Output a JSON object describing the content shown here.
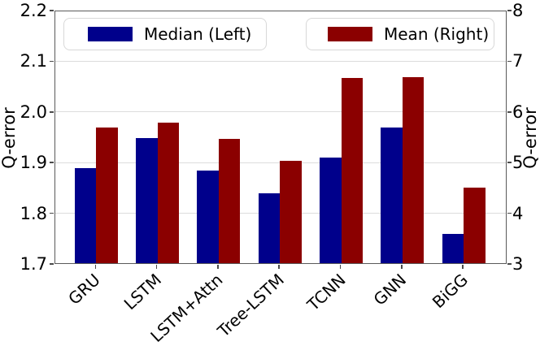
{
  "chart_data": {
    "type": "bar",
    "title": "",
    "categories": [
      "GRU",
      "LSTM",
      "LSTM+Attn",
      "Tree-LSTM",
      "TCNN",
      "GNN",
      "BiGG"
    ],
    "series": [
      {
        "name": "Median (Left)",
        "key": "median",
        "axis": "left",
        "color": "#00008B",
        "values": [
          1.89,
          1.95,
          1.885,
          1.84,
          1.91,
          1.97,
          1.76
        ]
      },
      {
        "name": "Mean (Right)",
        "key": "mean",
        "axis": "right",
        "color": "#8B0000",
        "values": [
          5.7,
          5.8,
          5.47,
          5.05,
          6.68,
          6.7,
          4.52
        ]
      }
    ],
    "left_axis": {
      "label": "Q-error",
      "min": 1.7,
      "max": 2.2,
      "tick_labels": [
        "2.2",
        "2.1",
        "2.0",
        "1.9",
        "1.8",
        "1.7"
      ]
    },
    "right_axis": {
      "label": "Q-error",
      "min": 3,
      "max": 8,
      "tick_labels": [
        "8",
        "7",
        "6",
        "5",
        "4",
        "3"
      ]
    },
    "grid": true,
    "legend_position": "top-inside",
    "legend": [
      {
        "label": "Median (Left)",
        "color": "#00008B"
      },
      {
        "label": "Mean (Right)",
        "color": "#8B0000"
      }
    ]
  }
}
